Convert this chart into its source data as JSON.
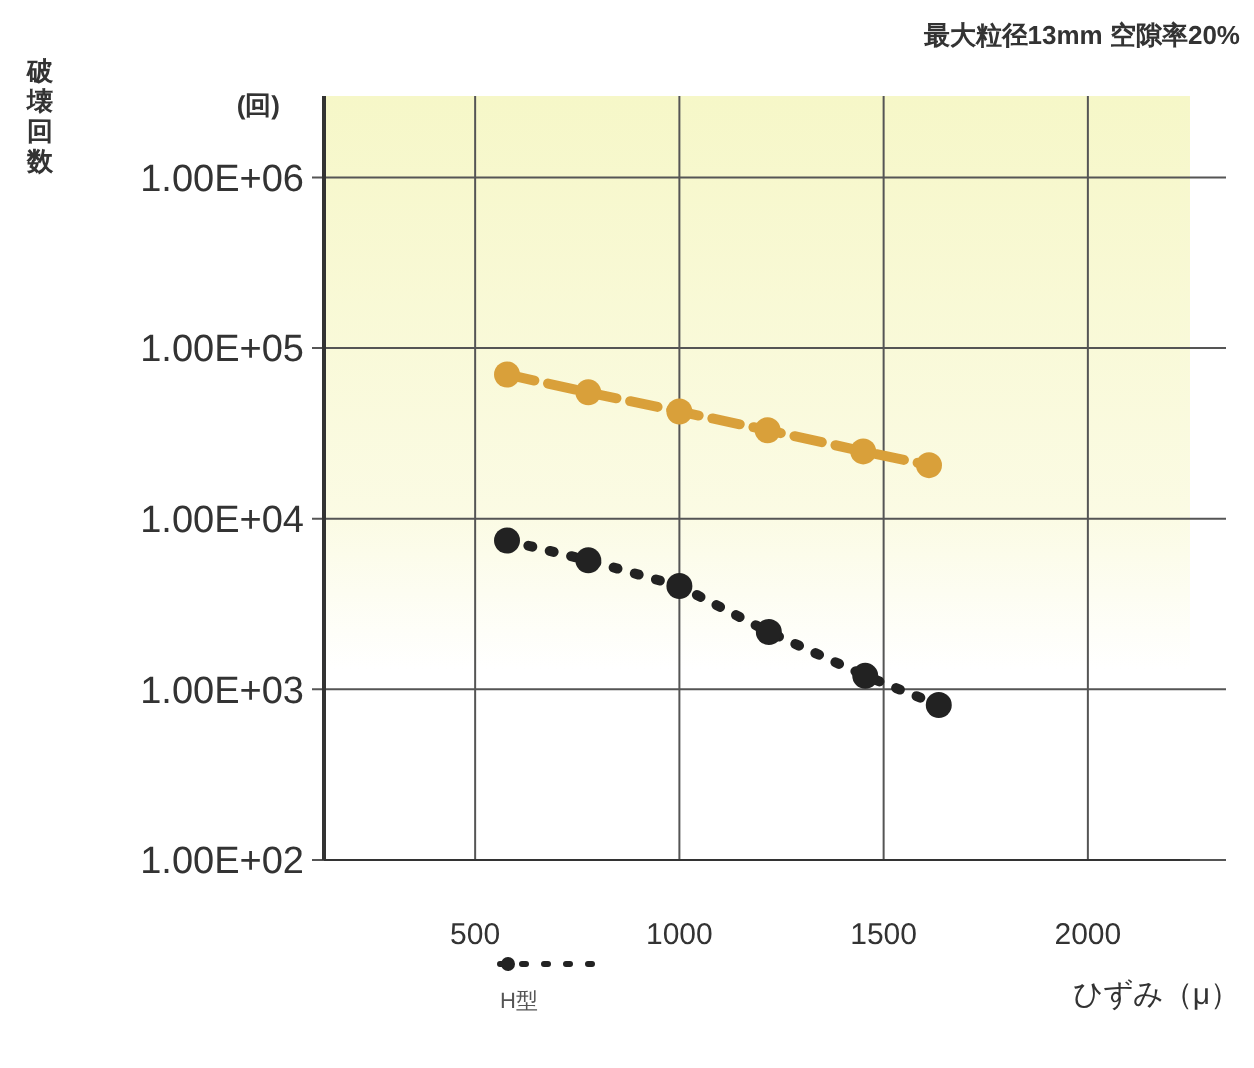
{
  "chart_data": {
    "type": "line",
    "title": "最大粒径13mm 空隙率20%",
    "xlabel": "ひずみ（μ）",
    "ylabel": "破壊回数",
    "annotations": [
      "(回)"
    ],
    "log": "y",
    "grid": true,
    "legend": "bottom",
    "marker": "circle",
    "xlim": [
      130,
      2250
    ],
    "xticks": [
      500,
      1000,
      1500,
      2000
    ],
    "ylim": [
      100,
      3000000
    ],
    "yticks": [
      {
        "value": 100,
        "label": "1.00E+02"
      },
      {
        "value": 1000,
        "label": "1.00E+03"
      },
      {
        "value": 10000,
        "label": "1.00E+04"
      },
      {
        "value": 100000,
        "label": "1.00E+05"
      },
      {
        "value": 1000000,
        "label": "1.00E+06"
      }
    ],
    "series": [
      {
        "color": "#d9a03a",
        "line_style": "dashed",
        "x": [
          578,
          777,
          1000,
          1216,
          1450,
          1611
        ],
        "values": [
          70000,
          55000,
          42500,
          33000,
          24800,
          20600
        ]
      },
      {
        "name": "H型",
        "color": "#222222",
        "line_style": "dotted",
        "x": [
          578,
          777,
          1000,
          1219,
          1455,
          1635
        ],
        "values": [
          7450,
          5700,
          4030,
          2170,
          1200,
          810
        ]
      }
    ]
  }
}
